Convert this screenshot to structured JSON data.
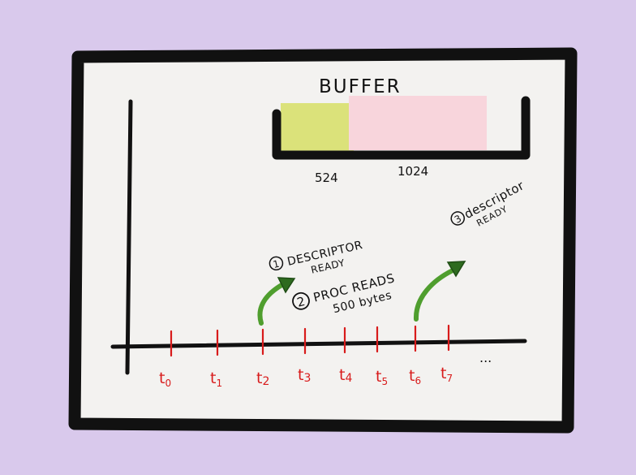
{
  "colors": {
    "background": "#d9c9ec",
    "paper": "#f3f2f0",
    "frame": "#111111",
    "tick": "#d81b1b",
    "buffer_fill_1": "#dbe27a",
    "buffer_fill_2": "#f8d5dc",
    "arrow": "#4f9e2e"
  },
  "buffer": {
    "title": "BUFFER",
    "mark_1": "524",
    "mark_2": "1024"
  },
  "timeline": {
    "ticks": [
      {
        "base": "t",
        "sub": "0"
      },
      {
        "base": "t",
        "sub": "1"
      },
      {
        "base": "t",
        "sub": "2"
      },
      {
        "base": "t",
        "sub": "3"
      },
      {
        "base": "t",
        "sub": "4"
      },
      {
        "base": "t",
        "sub": "5"
      },
      {
        "base": "t",
        "sub": "6"
      },
      {
        "base": "t",
        "sub": "7"
      }
    ],
    "ellipsis": "..."
  },
  "annotations": {
    "note_1": {
      "num": "1",
      "line1": "DESCRIPTOR",
      "line2": "READY"
    },
    "note_2": {
      "num": "2",
      "line1": "PROC READS",
      "line2": "500 bytes"
    },
    "note_3": {
      "num": "3",
      "line1": "descriptor",
      "line2": "READY"
    }
  }
}
